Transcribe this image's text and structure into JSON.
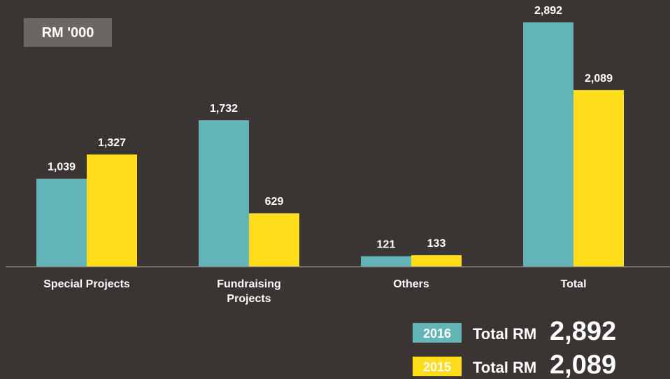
{
  "chart_data": {
    "type": "bar",
    "unit_label": "RM '000",
    "categories": [
      "Special Projects",
      "Fundraising Projects",
      "Others",
      "Total"
    ],
    "series": [
      {
        "name": "2016",
        "color": "#62b6b7",
        "values": [
          1039,
          1732,
          121,
          2892
        ],
        "value_labels": [
          "1,039",
          "1,732",
          "121",
          "2,892"
        ]
      },
      {
        "name": "2015",
        "color": "#ffdd1a",
        "values": [
          1327,
          629,
          133,
          2089
        ],
        "value_labels": [
          "1,327",
          "629",
          "133",
          "2,089"
        ]
      }
    ],
    "legend_prefix": "Total RM"
  }
}
